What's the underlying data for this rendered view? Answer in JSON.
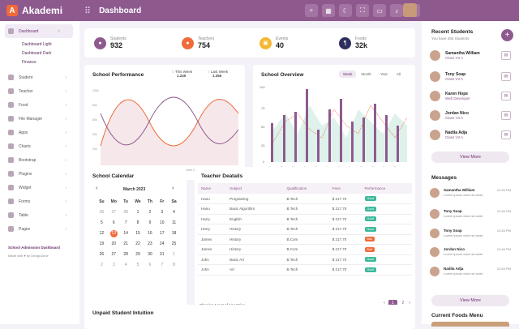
{
  "app": {
    "name": "Akademi",
    "logo_letter": "A",
    "page_title": "Dashboard"
  },
  "topbar": {
    "icons": [
      "search-icon",
      "grid-icon",
      "moon-icon",
      "expand-icon",
      "chat-icon",
      "bell-icon",
      "gear-icon"
    ]
  },
  "sidebar": {
    "items": [
      {
        "label": "Dashboard"
      },
      {
        "label": "Student"
      },
      {
        "label": "Teacher"
      },
      {
        "label": "Food"
      },
      {
        "label": "File Manager"
      },
      {
        "label": "Apps"
      },
      {
        "label": "Charts"
      },
      {
        "label": "Bootstrap"
      },
      {
        "label": "Plugins"
      },
      {
        "label": "Widget"
      },
      {
        "label": "Forms"
      },
      {
        "label": "Table"
      },
      {
        "label": "Pages"
      }
    ],
    "sub_items": [
      "Dashboard Light",
      "Dashboard Dark",
      "Finance"
    ],
    "footer_title": "School Admission Dashboard",
    "footer_made": "Made with ♥ by DexignZone"
  },
  "stats": [
    {
      "label": "Students",
      "value": "932",
      "color": "#8e5a8e"
    },
    {
      "label": "Teachers",
      "value": "754",
      "color": "#f06a3a"
    },
    {
      "label": "Events",
      "value": "40",
      "color": "#f5b731"
    },
    {
      "label": "Foods",
      "value": "32k",
      "color": "#2d2e5f"
    }
  ],
  "performance": {
    "title": "School Performance",
    "this_week_label": "This Week",
    "this_week_value": "1.245",
    "last_week_label": "Last Week",
    "last_week_value": "1.356",
    "y_ticks": [
      "100k",
      "80k",
      "60k",
      "40k",
      "20k"
    ],
    "x_ticks": [
      "Week 01",
      "Week 02",
      "Week 03",
      "Week 04",
      "Week 05",
      "Week 06",
      "Week 07"
    ]
  },
  "overview": {
    "title": "School Overview",
    "tabs": [
      "Week",
      "Month",
      "Year",
      "All"
    ],
    "y_ticks": [
      "100",
      "75",
      "50",
      "25",
      "0"
    ],
    "months": [
      "Jan",
      "Feb",
      "Mar",
      "Apr",
      "May",
      "Jun",
      "Jul",
      "Aug",
      "Sep",
      "Oct",
      "Nov",
      "Dec"
    ],
    "legend": [
      "Number of Projects",
      "Revenue",
      "Active Projects"
    ]
  },
  "calendar": {
    "title": "School Calendar",
    "month": "March 2023",
    "days": [
      "Su",
      "Mo",
      "Tu",
      "We",
      "Th",
      "Fr",
      "Sa"
    ],
    "dates": [
      "26",
      "27",
      "28",
      "1",
      "2",
      "3",
      "4",
      "5",
      "6",
      "7",
      "8",
      "9",
      "10",
      "11",
      "12",
      "13",
      "14",
      "15",
      "16",
      "17",
      "18",
      "19",
      "20",
      "21",
      "22",
      "23",
      "24",
      "25",
      "26",
      "27",
      "28",
      "29",
      "30",
      "31",
      "1",
      "2",
      "3",
      "4",
      "5",
      "6",
      "7",
      "8"
    ],
    "today": "13"
  },
  "teachers": {
    "title": "Teacher Deatails",
    "columns": [
      "Name",
      "Subject",
      "Qualification",
      "Fees",
      "Performance"
    ],
    "rows": [
      [
        "Hanu",
        "Programing",
        "B.Tech",
        "$ 217.70",
        "Good"
      ],
      [
        "Hanu",
        "Basic Algorithm",
        "B.Tech",
        "$ 217.70",
        "Good"
      ],
      [
        "Harry",
        "English",
        "B.Tech",
        "$ 217.70",
        "Good"
      ],
      [
        "Harry",
        "History",
        "B.Tech",
        "$ 217.70",
        "Good"
      ],
      [
        "James",
        "History",
        "B.Com",
        "$ 217.70",
        "Bad"
      ],
      [
        "James",
        "History",
        "B.Com",
        "$ 217.70",
        "Bad"
      ],
      [
        "John",
        "Basic Art",
        "B.Tech",
        "$ 217.70",
        "Good"
      ],
      [
        "John",
        "Art",
        "B.Tech",
        "$ 217.70",
        "Good"
      ]
    ],
    "showing": "Showing 1 to 8 of 14 entries",
    "pages": [
      "1",
      "2"
    ]
  },
  "unpaid": {
    "title": "Unpaid Student Intuition"
  },
  "recent_students": {
    "title": "Recent Students",
    "subtitle": "You have 456 Students",
    "list": [
      {
        "name": "Samantha William",
        "cls": "Class VII A"
      },
      {
        "name": "Tony Soap",
        "cls": "Class VII A"
      },
      {
        "name": "Karen Hope",
        "cls": "Web Developer"
      },
      {
        "name": "Jordan Nico",
        "cls": "Class VII A"
      },
      {
        "name": "Nadila Adja",
        "cls": "Class VII A"
      }
    ],
    "view_more": "View More"
  },
  "messages": {
    "title": "Messages",
    "list": [
      {
        "name": "Samantha William",
        "text": "Lorem ipsum dolor sit amet",
        "time": "12:45 PM"
      },
      {
        "name": "Tony Soap",
        "text": "Lorem ipsum dolor sit amet",
        "time": "12:45 PM"
      },
      {
        "name": "Tony Soap",
        "text": "Lorem ipsum dolor sit amet",
        "time": "12:45 PM"
      },
      {
        "name": "Jordan Nico",
        "text": "Lorem ipsum dolor sit amet",
        "time": "12:45 PM"
      },
      {
        "name": "Nadila Adja",
        "text": "Lorem ipsum dolor sit amet",
        "time": "12:45 PM"
      }
    ],
    "view_more": "View More"
  },
  "foods": {
    "title": "Current Foods Menu"
  }
}
